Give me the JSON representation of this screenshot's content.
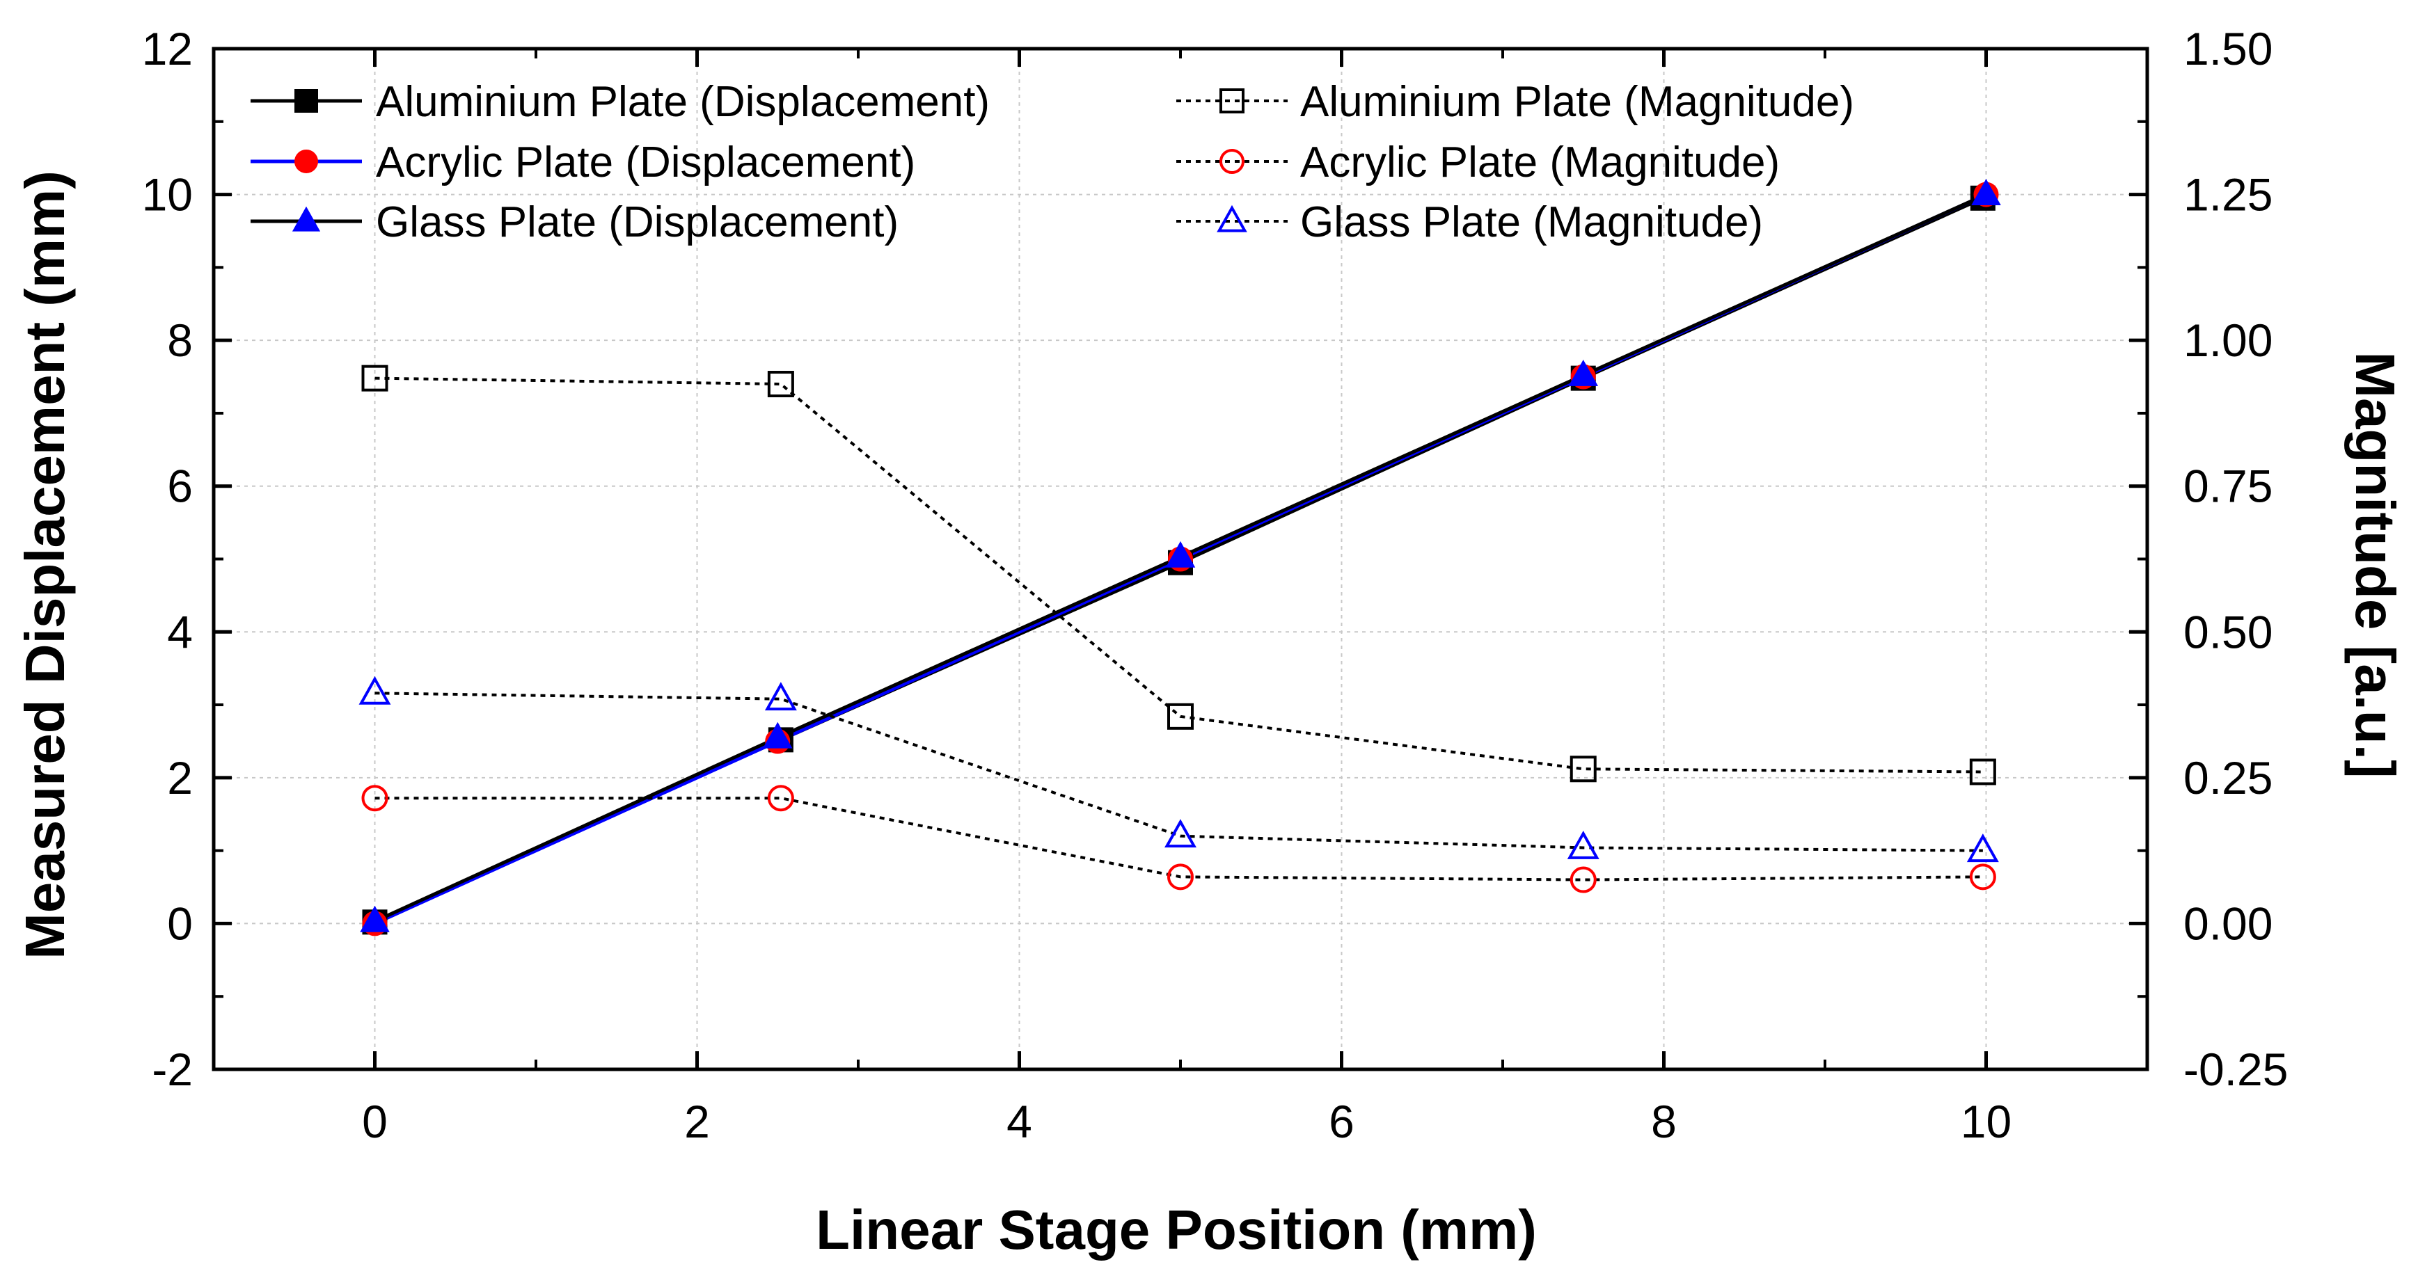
{
  "chart_data": {
    "type": "line",
    "title": "",
    "xlabel": "Linear Stage Position (mm)",
    "ylabel": "Measured Displacement (mm)",
    "y2label": "Magnitude [a.u.]",
    "xlim": [
      -1,
      11
    ],
    "ylim": [
      -2,
      12
    ],
    "y2lim": [
      -0.25,
      1.5
    ],
    "grid": true,
    "legend_position": "top",
    "x_ticks": [
      0,
      2,
      4,
      6,
      8,
      10
    ],
    "y_ticks": [
      -2,
      0,
      2,
      4,
      6,
      8,
      10,
      12
    ],
    "y2_ticks": [
      -0.25,
      0.0,
      0.25,
      0.5,
      0.75,
      1.0,
      1.25,
      1.5
    ],
    "x_tick_labels": [
      "0",
      "2",
      "4",
      "6",
      "8",
      "10"
    ],
    "y_tick_labels": [
      "-2",
      "0",
      "2",
      "4",
      "6",
      "8",
      "10",
      "12"
    ],
    "y2_tick_labels": [
      "-0.25",
      "0.00",
      "0.25",
      "0.50",
      "0.75",
      "1.00",
      "1.25",
      "1.50"
    ],
    "series": [
      {
        "name": "Aluminium Plate (Displacement)",
        "axis": "left",
        "style": "solid",
        "marker": "square",
        "filled": true,
        "color": "#000000",
        "x": [
          0.0,
          2.52,
          5.0,
          7.5,
          9.98
        ],
        "y": [
          0.02,
          2.52,
          4.95,
          7.48,
          9.95
        ]
      },
      {
        "name": "Acrylic Plate (Displacement)",
        "axis": "left",
        "style": "solid",
        "marker": "circle",
        "filled": true,
        "color": "#ff0000",
        "line_color": "#0000ff",
        "x": [
          0.0,
          2.5,
          5.0,
          7.5,
          10.0
        ],
        "y": [
          0.0,
          2.5,
          5.0,
          7.5,
          10.0
        ]
      },
      {
        "name": "Glass Plate (Displacement)",
        "axis": "left",
        "style": "solid",
        "marker": "triangle",
        "filled": true,
        "color": "#0000ff",
        "line_color": "#000000",
        "x": [
          0.0,
          2.5,
          5.0,
          7.5,
          10.0
        ],
        "y": [
          0.03,
          2.55,
          5.03,
          7.52,
          10.0
        ]
      },
      {
        "name": "Aluminium Plate (Magnitude)",
        "axis": "right",
        "style": "dotted",
        "marker": "square",
        "filled": false,
        "color": "#000000",
        "x": [
          0.0,
          2.52,
          5.0,
          7.5,
          9.98
        ],
        "y": [
          0.935,
          0.925,
          0.355,
          0.265,
          0.26
        ]
      },
      {
        "name": "Acrylic Plate (Magnitude)",
        "axis": "right",
        "style": "dotted",
        "marker": "circle",
        "filled": false,
        "color": "#ff0000",
        "line_color": "#000000",
        "x": [
          0.0,
          2.52,
          5.0,
          7.5,
          9.98
        ],
        "y": [
          0.215,
          0.215,
          0.08,
          0.075,
          0.08
        ]
      },
      {
        "name": "Glass Plate (Magnitude)",
        "axis": "right",
        "style": "dotted",
        "marker": "triangle",
        "filled": false,
        "color": "#0000ff",
        "line_color": "#000000",
        "x": [
          0.0,
          2.52,
          5.0,
          7.5,
          9.98
        ],
        "y": [
          0.395,
          0.385,
          0.15,
          0.13,
          0.125
        ]
      }
    ]
  }
}
